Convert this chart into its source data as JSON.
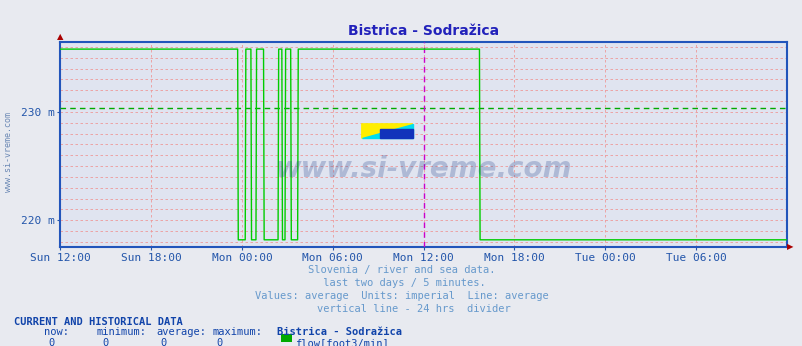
{
  "title": "Bistrica - Sodražica",
  "bg_color": "#e8eaf0",
  "plot_bg_color": "#e0e4f0",
  "title_color": "#2222bb",
  "tick_color": "#2255aa",
  "ytick_labels": [
    "220 m",
    "230 m"
  ],
  "ytick_vals": [
    220,
    230
  ],
  "ymin": 217.5,
  "ymax": 236.5,
  "avg_line_value": 230.35,
  "avg_line_color": "#00aa00",
  "grid_color": "#ee9999",
  "line_color": "#00cc00",
  "divider_color": "#cc00cc",
  "border_color": "#2255bb",
  "watermark_text": "www.si-vreme.com",
  "watermark_color": "#1a3a88",
  "subtitle_lines": [
    "Slovenia / river and sea data.",
    " last two days / 5 minutes.",
    "Values: average  Units: imperial  Line: average",
    "    vertical line - 24 hrs  divider"
  ],
  "subtitle_color": "#6699cc",
  "footer_bold": "CURRENT AND HISTORICAL DATA",
  "footer_color": "#1144aa",
  "footer_labels": [
    "now:",
    "minimum:",
    "average:",
    "maximum:",
    "Bistrica - Sodražica"
  ],
  "footer_values": [
    "0",
    "0",
    "0",
    "0"
  ],
  "footer_legend_color": "#00aa00",
  "footer_legend_label": "flow[foot3/min]",
  "x_tick_labels": [
    "Sun 12:00",
    "Sun 18:00",
    "Mon 00:00",
    "Mon 06:00",
    "Mon 12:00",
    "Mon 18:00",
    "Tue 00:00",
    "Tue 06:00"
  ],
  "x_tick_positions": [
    0.0,
    0.25,
    0.5,
    0.75,
    1.0,
    1.25,
    1.5,
    1.75
  ],
  "xmax": 2.0,
  "divider_x": 1.0,
  "num_points": 1152,
  "flow_segments": [
    {
      "start": 0.0,
      "end": 0.49,
      "value": 235.8
    },
    {
      "start": 0.49,
      "end": 0.49,
      "value": 235.8
    },
    {
      "start": 0.49,
      "end": 0.51,
      "value": 218.2
    },
    {
      "start": 0.51,
      "end": 0.525,
      "value": 235.8
    },
    {
      "start": 0.525,
      "end": 0.54,
      "value": 218.2
    },
    {
      "start": 0.54,
      "end": 0.56,
      "value": 235.8
    },
    {
      "start": 0.56,
      "end": 0.6,
      "value": 218.2
    },
    {
      "start": 0.6,
      "end": 0.61,
      "value": 235.8
    },
    {
      "start": 0.61,
      "end": 0.62,
      "value": 218.2
    },
    {
      "start": 0.62,
      "end": 0.635,
      "value": 235.8
    },
    {
      "start": 0.635,
      "end": 0.655,
      "value": 218.2
    },
    {
      "start": 0.655,
      "end": 1.155,
      "value": 235.8
    },
    {
      "start": 1.155,
      "end": 2.001,
      "value": 218.2
    }
  ]
}
